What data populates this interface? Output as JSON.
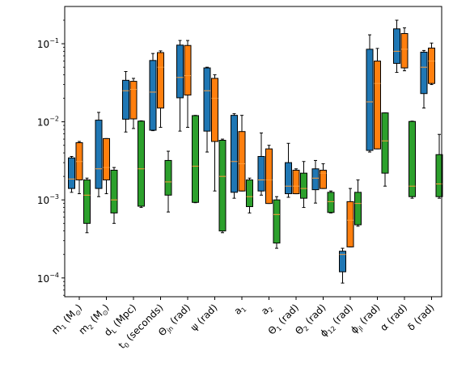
{
  "chart_data": {
    "type": "boxplot",
    "title": "",
    "xlabel": "",
    "ylabel": "",
    "yscale": "log",
    "ylim": [
      5.75e-05,
      0.3
    ],
    "yticks": [
      {
        "value": 0.0001,
        "mantissa": "10",
        "exp": "−4"
      },
      {
        "value": 0.001,
        "mantissa": "10",
        "exp": "−3"
      },
      {
        "value": 0.01,
        "mantissa": "10",
        "exp": "−2"
      },
      {
        "value": 0.1,
        "mantissa": "10",
        "exp": "−1"
      }
    ],
    "grid": false,
    "legend": false,
    "series_colors": [
      "#1f77b4",
      "#ff7f0e",
      "#2ca02c"
    ],
    "median_color": "#ff9d3a",
    "categories": [
      {
        "main": "m",
        "sub": "1",
        "rest": " (M",
        "sub2": "⊙",
        "end": ")"
      },
      {
        "main": "m",
        "sub": "2",
        "rest": " (M",
        "sub2": "⊙",
        "end": ")"
      },
      {
        "main": "d",
        "sub": "L",
        "rest": " (Mpc)",
        "sub2": "",
        "end": ""
      },
      {
        "main": "t",
        "sub": "0",
        "rest": " (seconds)",
        "sub2": "",
        "end": ""
      },
      {
        "main": "Θ",
        "sub": "jn",
        "rest": " (rad)",
        "sub2": "",
        "end": ""
      },
      {
        "main": "ψ",
        "sub": "",
        "rest": " (rad)",
        "sub2": "",
        "end": ""
      },
      {
        "main": "a",
        "sub": "1",
        "rest": "",
        "sub2": "",
        "end": ""
      },
      {
        "main": "a",
        "sub": "2",
        "rest": "",
        "sub2": "",
        "end": ""
      },
      {
        "main": "Θ",
        "sub": "1",
        "rest": " (rad)",
        "sub2": "",
        "end": ""
      },
      {
        "main": "Θ",
        "sub": "2",
        "rest": " (rad)",
        "sub2": "",
        "end": ""
      },
      {
        "main": "ϕ",
        "sub": "12",
        "rest": " (rad)",
        "sub2": "",
        "end": ""
      },
      {
        "main": "ϕ",
        "sub": "jl",
        "rest": " (rad)",
        "sub2": "",
        "end": ""
      },
      {
        "main": "α",
        "sub": "",
        "rest": " (rad)",
        "sub2": "",
        "end": ""
      },
      {
        "main": "δ",
        "sub": "",
        "rest": " (rad)",
        "sub2": "",
        "end": ""
      }
    ],
    "series": [
      {
        "boxes": [
          {
            "whislo": 0.00125,
            "q1": 0.0014,
            "med": 0.00185,
            "q3": 0.00345,
            "whishi": 0.0036
          },
          {
            "whislo": 0.0011,
            "q1": 0.0014,
            "med": 0.0025,
            "q3": 0.0105,
            "whishi": 0.0132
          },
          {
            "whislo": 0.0074,
            "q1": 0.0108,
            "med": 0.025,
            "q3": 0.034,
            "whishi": 0.044
          },
          {
            "whislo": 0.0077,
            "q1": 0.0078,
            "med": 0.024,
            "q3": 0.061,
            "whishi": 0.075
          },
          {
            "whislo": 0.0076,
            "q1": 0.0203,
            "med": 0.037,
            "q3": 0.096,
            "whishi": 0.11
          },
          {
            "whislo": 0.0041,
            "q1": 0.0076,
            "med": 0.025,
            "q3": 0.049,
            "whishi": 0.05
          },
          {
            "whislo": 0.00105,
            "q1": 0.00125,
            "med": 0.0031,
            "q3": 0.0121,
            "whishi": 0.0127
          },
          {
            "whislo": 0.00115,
            "q1": 0.0013,
            "med": 0.0018,
            "q3": 0.0036,
            "whishi": 0.0072
          },
          {
            "whislo": 0.00108,
            "q1": 0.0012,
            "med": 0.0015,
            "q3": 0.003,
            "whishi": 0.0053
          },
          {
            "whislo": 0.00091,
            "q1": 0.00135,
            "med": 0.0019,
            "q3": 0.0025,
            "whishi": 0.0032
          },
          {
            "whislo": 8.6e-05,
            "q1": 0.00012,
            "med": 0.0002,
            "q3": 0.00022,
            "whishi": 0.00024
          },
          {
            "whislo": 0.0041,
            "q1": 0.0043,
            "med": 0.018,
            "q3": 0.085,
            "whishi": 0.13
          },
          {
            "whislo": 0.043,
            "q1": 0.056,
            "med": 0.08,
            "q3": 0.155,
            "whishi": 0.2
          },
          {
            "whislo": 0.015,
            "q1": 0.023,
            "med": 0.05,
            "q3": 0.078,
            "whishi": 0.082
          }
        ]
      },
      {
        "boxes": [
          {
            "whislo": 0.0012,
            "q1": 0.0018,
            "med": 0.0031,
            "q3": 0.0054,
            "whishi": 0.0056
          },
          {
            "whislo": 0.0012,
            "q1": 0.0018,
            "med": 0.0026,
            "q3": 0.0061,
            "whishi": 0.0061
          },
          {
            "whislo": 0.0082,
            "q1": 0.0109,
            "med": 0.026,
            "q3": 0.033,
            "whishi": 0.036
          },
          {
            "whislo": 0.0085,
            "q1": 0.015,
            "med": 0.05,
            "q3": 0.077,
            "whishi": 0.081
          },
          {
            "whislo": 0.0085,
            "q1": 0.022,
            "med": 0.039,
            "q3": 0.095,
            "whishi": 0.11
          },
          {
            "whislo": 0.0013,
            "q1": 0.0056,
            "med": 0.02,
            "q3": 0.036,
            "whishi": 0.04
          },
          {
            "whislo": 0.0013,
            "q1": 0.0013,
            "med": 0.0029,
            "q3": 0.0075,
            "whishi": 0.0121
          },
          {
            "whislo": 0.0009,
            "q1": 0.0009,
            "med": 0.0018,
            "q3": 0.0045,
            "whishi": 0.005
          },
          {
            "whislo": 0.0012,
            "q1": 0.0012,
            "med": 0.0015,
            "q3": 0.0024,
            "whishi": 0.0025
          },
          {
            "whislo": 0.0014,
            "q1": 0.0014,
            "med": 0.0022,
            "q3": 0.0024,
            "whishi": 0.0029
          },
          {
            "whislo": 0.00025,
            "q1": 0.00025,
            "med": 0.00055,
            "q3": 0.00095,
            "whishi": 0.0014
          },
          {
            "whislo": 0.0045,
            "q1": 0.0045,
            "med": 0.031,
            "q3": 0.06,
            "whishi": 0.087
          },
          {
            "whislo": 0.045,
            "q1": 0.049,
            "med": 0.085,
            "q3": 0.135,
            "whishi": 0.16
          },
          {
            "whislo": 0.03,
            "q1": 0.031,
            "med": 0.06,
            "q3": 0.088,
            "whishi": 0.102
          }
        ]
      },
      {
        "boxes": [
          {
            "whislo": 0.00038,
            "q1": 0.0005,
            "med": 0.00115,
            "q3": 0.0018,
            "whishi": 0.0019
          },
          {
            "whislo": 0.0005,
            "q1": 0.00068,
            "med": 0.001,
            "q3": 0.0024,
            "whishi": 0.0026
          },
          {
            "whislo": 0.0008,
            "q1": 0.00083,
            "med": 0.0025,
            "q3": 0.0102,
            "whishi": 0.0103
          },
          {
            "whislo": 0.0007,
            "q1": 0.00115,
            "med": 0.0017,
            "q3": 0.0032,
            "whishi": 0.0042
          },
          {
            "whislo": 0.00092,
            "q1": 0.00093,
            "med": 0.0027,
            "q3": 0.012,
            "whishi": 0.0121
          },
          {
            "whislo": 0.00038,
            "q1": 0.0004,
            "med": 0.002,
            "q3": 0.0058,
            "whishi": 0.006
          },
          {
            "whislo": 0.00068,
            "q1": 0.00082,
            "med": 0.0011,
            "q3": 0.0018,
            "whishi": 0.0019
          },
          {
            "whislo": 0.00024,
            "q1": 0.00028,
            "med": 0.00065,
            "q3": 0.001,
            "whishi": 0.0011
          },
          {
            "whislo": 0.0008,
            "q1": 0.00105,
            "med": 0.0014,
            "q3": 0.0022,
            "whishi": 0.0031
          },
          {
            "whislo": 0.00068,
            "q1": 0.00069,
            "med": 0.00095,
            "q3": 0.00125,
            "whishi": 0.0013
          },
          {
            "whislo": 0.00046,
            "q1": 0.00048,
            "med": 0.0009,
            "q3": 0.00125,
            "whishi": 0.0018
          },
          {
            "whislo": 0.0015,
            "q1": 0.0022,
            "med": 0.0057,
            "q3": 0.013,
            "whishi": 0.013
          },
          {
            "whislo": 0.00105,
            "q1": 0.0011,
            "med": 0.0015,
            "q3": 0.0101,
            "whishi": 0.0102
          },
          {
            "whislo": 0.00105,
            "q1": 0.0011,
            "med": 0.0016,
            "q3": 0.0038,
            "whishi": 0.0069
          }
        ]
      }
    ]
  }
}
